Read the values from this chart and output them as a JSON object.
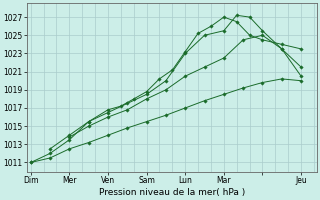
{
  "background_color": "#cceee8",
  "grid_color": "#aacccc",
  "line_color": "#1a6b2a",
  "title": "Pression niveau de la mer( hPa )",
  "ylabel_ticks": [
    1011,
    1013,
    1015,
    1017,
    1019,
    1021,
    1023,
    1025,
    1027
  ],
  "ylim": [
    1010.0,
    1028.5
  ],
  "xlim": [
    -0.1,
    7.4
  ],
  "x_day_labels": [
    "Dim",
    "Mer",
    "Ven",
    "Sam",
    "Lun",
    "Mar",
    "",
    "Jeu"
  ],
  "x_day_positions": [
    0,
    1,
    2,
    3,
    4,
    5,
    6,
    7
  ],
  "series": [
    {
      "x": [
        0.0,
        0.5,
        1.0,
        1.5,
        2.0,
        2.5,
        3.0,
        3.5,
        4.0,
        4.5,
        5.0,
        5.33,
        5.67,
        6.0,
        6.5,
        7.0
      ],
      "y": [
        1011.0,
        1012.0,
        1013.5,
        1015.5,
        1016.5,
        1017.5,
        1018.5,
        1020.0,
        1023.0,
        1025.0,
        1025.5,
        1027.2,
        1027.0,
        1025.5,
        1023.5,
        1020.5
      ]
    },
    {
      "x": [
        0.5,
        1.0,
        1.5,
        2.0,
        2.33,
        2.67,
        3.0,
        3.33,
        3.67,
        4.0,
        4.33,
        4.67,
        5.0,
        5.33,
        5.67,
        6.0,
        6.5,
        7.0
      ],
      "y": [
        1012.5,
        1014.0,
        1015.5,
        1016.8,
        1017.2,
        1018.0,
        1018.8,
        1020.2,
        1021.2,
        1023.2,
        1025.2,
        1026.0,
        1027.0,
        1026.5,
        1025.0,
        1024.5,
        1024.0,
        1023.5
      ]
    },
    {
      "x": [
        1.0,
        1.5,
        2.0,
        2.5,
        3.0,
        3.5,
        4.0,
        4.5,
        5.0,
        5.5,
        6.0,
        6.5,
        7.0
      ],
      "y": [
        1013.8,
        1015.0,
        1016.0,
        1016.8,
        1018.0,
        1019.0,
        1020.5,
        1021.5,
        1022.5,
        1024.5,
        1025.0,
        1023.5,
        1021.5
      ]
    },
    {
      "x": [
        0.0,
        0.5,
        1.0,
        1.5,
        2.0,
        2.5,
        3.0,
        3.5,
        4.0,
        4.5,
        5.0,
        5.5,
        6.0,
        6.5,
        7.0
      ],
      "y": [
        1011.0,
        1011.5,
        1012.5,
        1013.2,
        1014.0,
        1014.8,
        1015.5,
        1016.2,
        1017.0,
        1017.8,
        1018.5,
        1019.2,
        1019.8,
        1020.2,
        1020.0
      ]
    }
  ]
}
